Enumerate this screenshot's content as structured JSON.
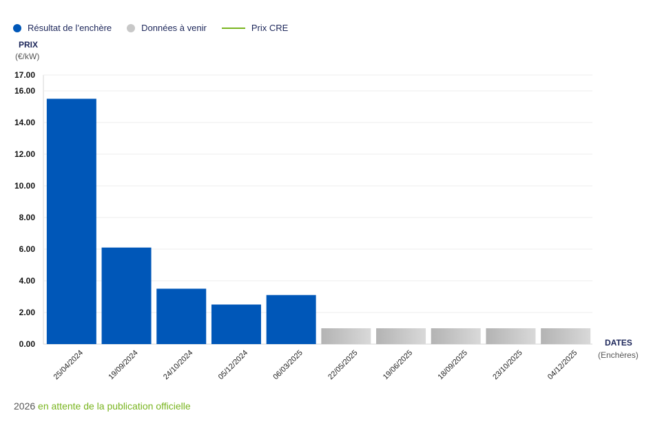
{
  "legend": {
    "result_label": "Résultat de l’enchère",
    "upcoming_label": "Données à venir",
    "cre_label": "Prix CRE"
  },
  "colors": {
    "result": "#0057b8",
    "upcoming": "#c8c8c8",
    "cre": "#78b41e",
    "title": "#1b2559"
  },
  "axis": {
    "y_title": "PRIX",
    "y_unit": "(€/kW)",
    "x_title": "DATES",
    "x_unit": "(Enchères)"
  },
  "footer": {
    "year": "2026",
    "note": "en attente de la publication officielle"
  },
  "chart_data": {
    "type": "bar",
    "title": "",
    "xlabel": "DATES",
    "ylabel": "PRIX",
    "ylim": [
      0,
      17
    ],
    "yticks": [
      "0.00",
      "2.00",
      "4.00",
      "6.00",
      "8.00",
      "10.00",
      "12.00",
      "14.00",
      "16.00",
      "17.00"
    ],
    "categories": [
      "25/04/2024",
      "19/09/2024",
      "24/10/2024",
      "05/12/2024",
      "06/03/2025",
      "22/05/2025",
      "19/06/2025",
      "18/09/2025",
      "23/10/2025",
      "04/12/2025"
    ],
    "series": [
      {
        "name": "Résultat de l’enchère",
        "values": [
          15.5,
          6.1,
          3.5,
          2.5,
          3.1,
          null,
          null,
          null,
          null,
          null
        ]
      },
      {
        "name": "Données à venir",
        "values": [
          null,
          null,
          null,
          null,
          null,
          1.0,
          1.0,
          1.0,
          1.0,
          1.0
        ]
      }
    ]
  }
}
